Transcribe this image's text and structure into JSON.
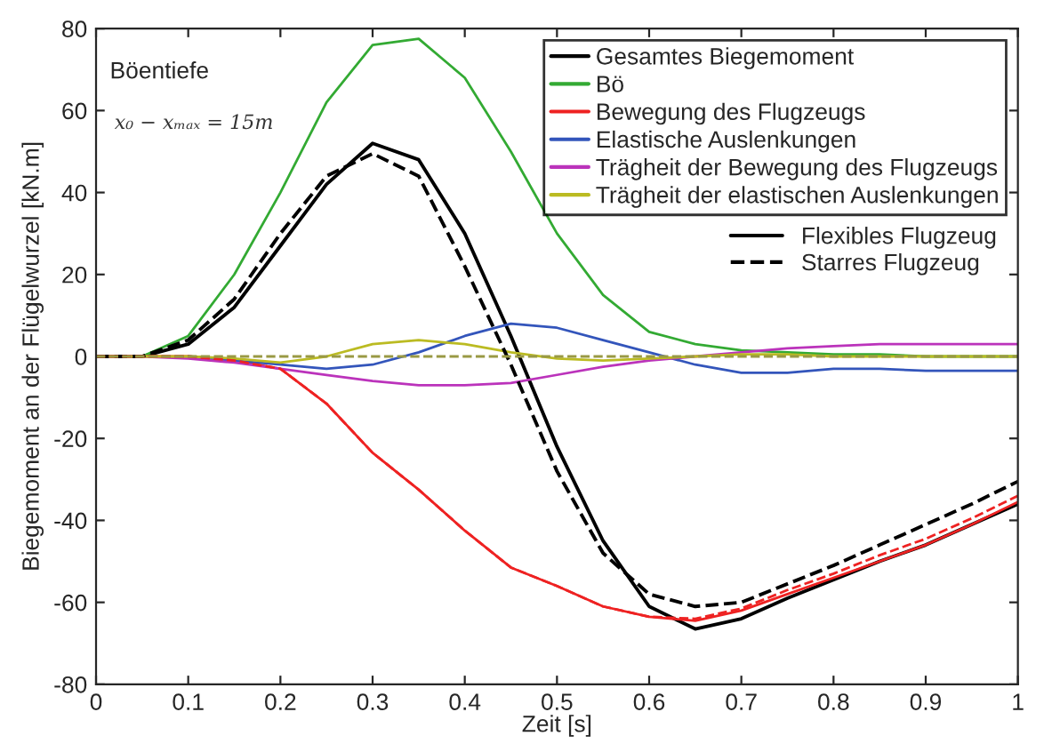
{
  "chart_data": {
    "type": "line",
    "xlabel": "Zeit [s]",
    "ylabel": "Biegemoment an der Flügelwurzel [kN.m]",
    "x": [
      0,
      0.05,
      0.1,
      0.15,
      0.2,
      0.25,
      0.3,
      0.35,
      0.4,
      0.45,
      0.5,
      0.55,
      0.6,
      0.65,
      0.7,
      0.75,
      0.8,
      0.85,
      0.9,
      0.95,
      1.0
    ],
    "series": [
      {
        "name": "Gesamtes Biegemoment",
        "color": "#000000",
        "line_style": "solid",
        "values": [
          0,
          0,
          3,
          12,
          27,
          42,
          52,
          48,
          30,
          5,
          -22,
          -45,
          -61,
          -66.5,
          -64,
          -59,
          -54.5,
          -50,
          -46,
          -41,
          -36
        ]
      },
      {
        "name": "Bö",
        "color": "#33aa33",
        "line_style": "solid",
        "values": [
          0,
          0,
          5,
          20,
          40,
          62,
          76,
          77.5,
          68,
          50,
          30,
          15,
          6,
          3,
          1.5,
          1,
          0.5,
          0.5,
          0,
          0,
          0
        ]
      },
      {
        "name": "Bewegung des Flugzeugs",
        "color": "#ee2222",
        "line_style": "solid",
        "values": [
          0,
          0,
          0,
          -1,
          -3,
          -11.5,
          -23.5,
          -32.5,
          -42.5,
          -51.5,
          -56,
          -61,
          -63.5,
          -64.5,
          -62,
          -58,
          -54,
          -50,
          -46,
          -41,
          -35.5
        ]
      },
      {
        "name": "Elastische Auslenkungen",
        "color": "#3355bb",
        "line_style": "solid",
        "values": [
          null,
          null,
          0,
          -1,
          -2,
          -3,
          -2,
          1,
          5,
          8,
          7,
          4,
          1,
          -2,
          -4,
          -4,
          -3,
          -3,
          -3.5,
          -3.5,
          -3.5
        ]
      },
      {
        "name": "Trägheit der Bewegung des Flugzeugs",
        "color": "#bb33bb",
        "line_style": "solid",
        "values": [
          0,
          0,
          -0.5,
          -1.5,
          -3,
          -4.5,
          -6,
          -7,
          -7,
          -6.5,
          -4.5,
          -2.5,
          -1,
          0,
          1,
          2,
          2.5,
          3,
          3,
          3,
          3
        ]
      },
      {
        "name": "Trägheit der elastischen Auslenkungen",
        "color": "#bbbb22",
        "line_style": "solid",
        "values": [
          0,
          0,
          0,
          -0.5,
          -1.5,
          0,
          3,
          4,
          3,
          1,
          -0.5,
          -1,
          -0.5,
          0,
          0.5,
          0.5,
          0,
          0,
          0,
          0,
          0
        ]
      },
      {
        "color": "#000000",
        "line_style": "dashed",
        "values": [
          0,
          0,
          4,
          14,
          30,
          44,
          49.5,
          44,
          22,
          -2,
          -28,
          -48,
          -58,
          -61,
          -60,
          -55.5,
          -51,
          -46,
          -41,
          -36,
          -30.5
        ]
      },
      {
        "color": "#ee2222",
        "line_style": "dashed",
        "values": [
          0,
          0,
          0,
          -1,
          -3,
          -11.5,
          -23.5,
          -32.5,
          -42.5,
          -51.5,
          -56,
          -61,
          -63.5,
          -64,
          -61.5,
          -57,
          -53,
          -48.5,
          -44.5,
          -39.5,
          -34
        ]
      },
      {
        "color": "#999944",
        "line_style": "dashed",
        "values": [
          0,
          0,
          0,
          0,
          0,
          0,
          0,
          0,
          0,
          0,
          0,
          0,
          0,
          0,
          0,
          0,
          0,
          0,
          0,
          0,
          0
        ]
      }
    ],
    "xlim": [
      0,
      1
    ],
    "ylim": [
      -80,
      80
    ],
    "xticks": [
      0,
      0.1,
      0.2,
      0.3,
      0.4,
      0.5,
      0.6,
      0.7,
      0.8,
      0.9,
      1
    ],
    "yticks": [
      -80,
      -60,
      -40,
      -20,
      0,
      20,
      40,
      60,
      80
    ],
    "grid": false,
    "legend": "top right",
    "annotations": [
      {
        "text": "Böentiefe"
      },
      {
        "text": "x₀ − xₘₐₓ = 15m"
      },
      {
        "text": "Flexibles Flugzeug"
      },
      {
        "text": "Starres Flugzeug"
      }
    ]
  }
}
